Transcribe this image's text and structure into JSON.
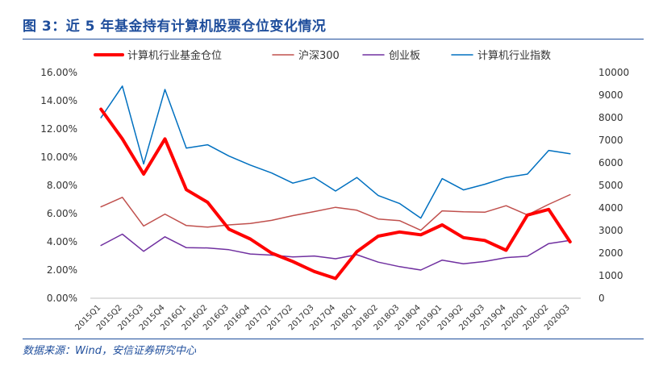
{
  "figure": {
    "title": "图 3：近 5 年基金持有计算机股票仓位变化情况",
    "source": "数据来源：Wind，安信证券研究中心"
  },
  "chart_data": {
    "type": "line",
    "categories": [
      "2015Q1",
      "2015Q2",
      "2015Q3",
      "2015Q4",
      "2016Q1",
      "2016Q2",
      "2016Q3",
      "2016Q4",
      "2017Q1",
      "2017Q2",
      "2017Q3",
      "2017Q4",
      "2018Q1",
      "2018Q2",
      "2018Q3",
      "2018Q4",
      "2019Q1",
      "2019Q2",
      "2019Q3",
      "2019Q4",
      "2020Q1",
      "2020Q2",
      "2020Q3"
    ],
    "y_left": {
      "ticks": [
        "0.00%",
        "2.00%",
        "4.00%",
        "6.00%",
        "8.00%",
        "10.00%",
        "12.00%",
        "14.00%",
        "16.00%"
      ],
      "ylim": [
        0,
        16
      ]
    },
    "y_right": {
      "ticks": [
        "0",
        "1000",
        "2000",
        "3000",
        "4000",
        "5000",
        "6000",
        "7000",
        "8000",
        "9000",
        "10000"
      ],
      "ylim": [
        0,
        10000
      ]
    },
    "legend_position": "top",
    "series": [
      {
        "name": "计算机行业基金仓位",
        "axis": "left",
        "color": "#ff0000",
        "width": 4,
        "values": [
          13.4,
          11.3,
          8.8,
          11.3,
          7.7,
          6.8,
          4.9,
          4.2,
          3.2,
          2.6,
          1.9,
          1.4,
          3.3,
          4.4,
          4.7,
          4.5,
          5.2,
          4.3,
          4.1,
          3.4,
          5.9,
          6.3,
          4.0
        ]
      },
      {
        "name": "沪深300",
        "axis": "right",
        "color": "#c0504d",
        "width": 1.5,
        "values": [
          4050,
          4470,
          3200,
          3730,
          3220,
          3150,
          3250,
          3310,
          3450,
          3660,
          3840,
          4030,
          3900,
          3510,
          3440,
          3010,
          3870,
          3830,
          3810,
          4100,
          3690,
          4160,
          4590
        ]
      },
      {
        "name": "创业板",
        "axis": "right",
        "color": "#7030a0",
        "width": 1.5,
        "values": [
          2340,
          2840,
          2080,
          2720,
          2240,
          2230,
          2150,
          1960,
          1910,
          1830,
          1870,
          1750,
          1930,
          1600,
          1400,
          1250,
          1690,
          1530,
          1630,
          1800,
          1860,
          2420,
          2560
        ]
      },
      {
        "name": "计算机行业指数",
        "axis": "right",
        "color": "#0070c0",
        "width": 1.5,
        "values": [
          8000,
          9400,
          5950,
          9250,
          6650,
          6800,
          6300,
          5900,
          5550,
          5100,
          5350,
          4750,
          5350,
          4550,
          4200,
          3550,
          5300,
          4800,
          5050,
          5350,
          5500,
          6550,
          6400
        ]
      }
    ]
  }
}
